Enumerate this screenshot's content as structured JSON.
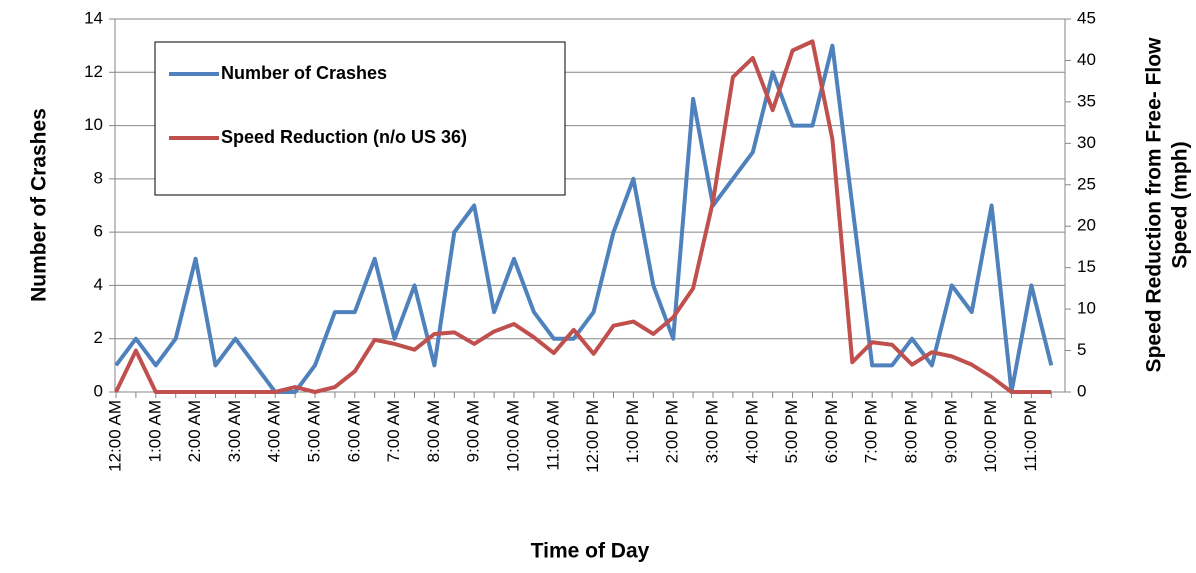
{
  "chart_data": {
    "type": "line",
    "categories": [
      "12:00 AM",
      null,
      "1:00 AM",
      null,
      "2:00 AM",
      null,
      "3:00 AM",
      null,
      "4:00 AM",
      null,
      "5:00 AM",
      null,
      "6:00 AM",
      null,
      "7:00 AM",
      null,
      "8:00 AM",
      null,
      "9:00 AM",
      null,
      "10:00 AM",
      null,
      "11:00 AM",
      null,
      "12:00 PM",
      null,
      "1:00 PM",
      null,
      "2:00 PM",
      null,
      "3:00 PM",
      null,
      "4:00 PM",
      null,
      "5:00 PM",
      null,
      "6:00 PM",
      null,
      "7:00 PM",
      null,
      "8:00 PM",
      null,
      "9:00 PM",
      null,
      "10:00 PM",
      null,
      "11:00 PM",
      null
    ],
    "series": [
      {
        "name": "Number of Crashes",
        "color": "#4f81bd",
        "values": [
          1,
          2,
          1,
          2,
          5,
          1,
          2,
          1,
          0,
          0,
          1,
          3,
          3,
          5,
          2,
          4,
          1,
          6,
          7,
          3,
          5,
          3,
          2,
          2,
          3,
          6,
          8,
          4,
          2,
          11,
          7,
          8,
          9,
          12,
          10,
          10,
          13,
          7,
          1,
          1,
          2,
          1,
          4,
          3,
          7,
          0,
          4,
          1
        ]
      },
      {
        "name": "Speed Reduction (n/o US 36)",
        "color": "#c0504d",
        "axis": "y2",
        "values": [
          0,
          5,
          0,
          0,
          0,
          0,
          0,
          0,
          0,
          0.6,
          0,
          0.6,
          2.5,
          6.3,
          5.8,
          5.1,
          7,
          7.2,
          5.8,
          7.3,
          8.2,
          6.6,
          4.7,
          7.5,
          4.6,
          8,
          8.5,
          7,
          9,
          12.5,
          23,
          38,
          40.3,
          34,
          41.2,
          42.3,
          30.5,
          3.6,
          6,
          5.7,
          3.3,
          4.8,
          4.3,
          3.3,
          1.8,
          0,
          0,
          0
        ]
      }
    ],
    "xlabel": "Time of Day",
    "ylabel": "Number of Crashes",
    "y2label": [
      "Speed Reduction from Free- Flow",
      "Speed (mph)"
    ],
    "ylim": [
      0,
      14
    ],
    "yticks": [
      0,
      2,
      4,
      6,
      8,
      10,
      12,
      14
    ],
    "y2lim": [
      0,
      45
    ],
    "y2ticks": [
      0,
      5,
      10,
      15,
      20,
      25,
      30,
      35,
      40,
      45
    ],
    "grid": true,
    "legend": "upper left"
  }
}
